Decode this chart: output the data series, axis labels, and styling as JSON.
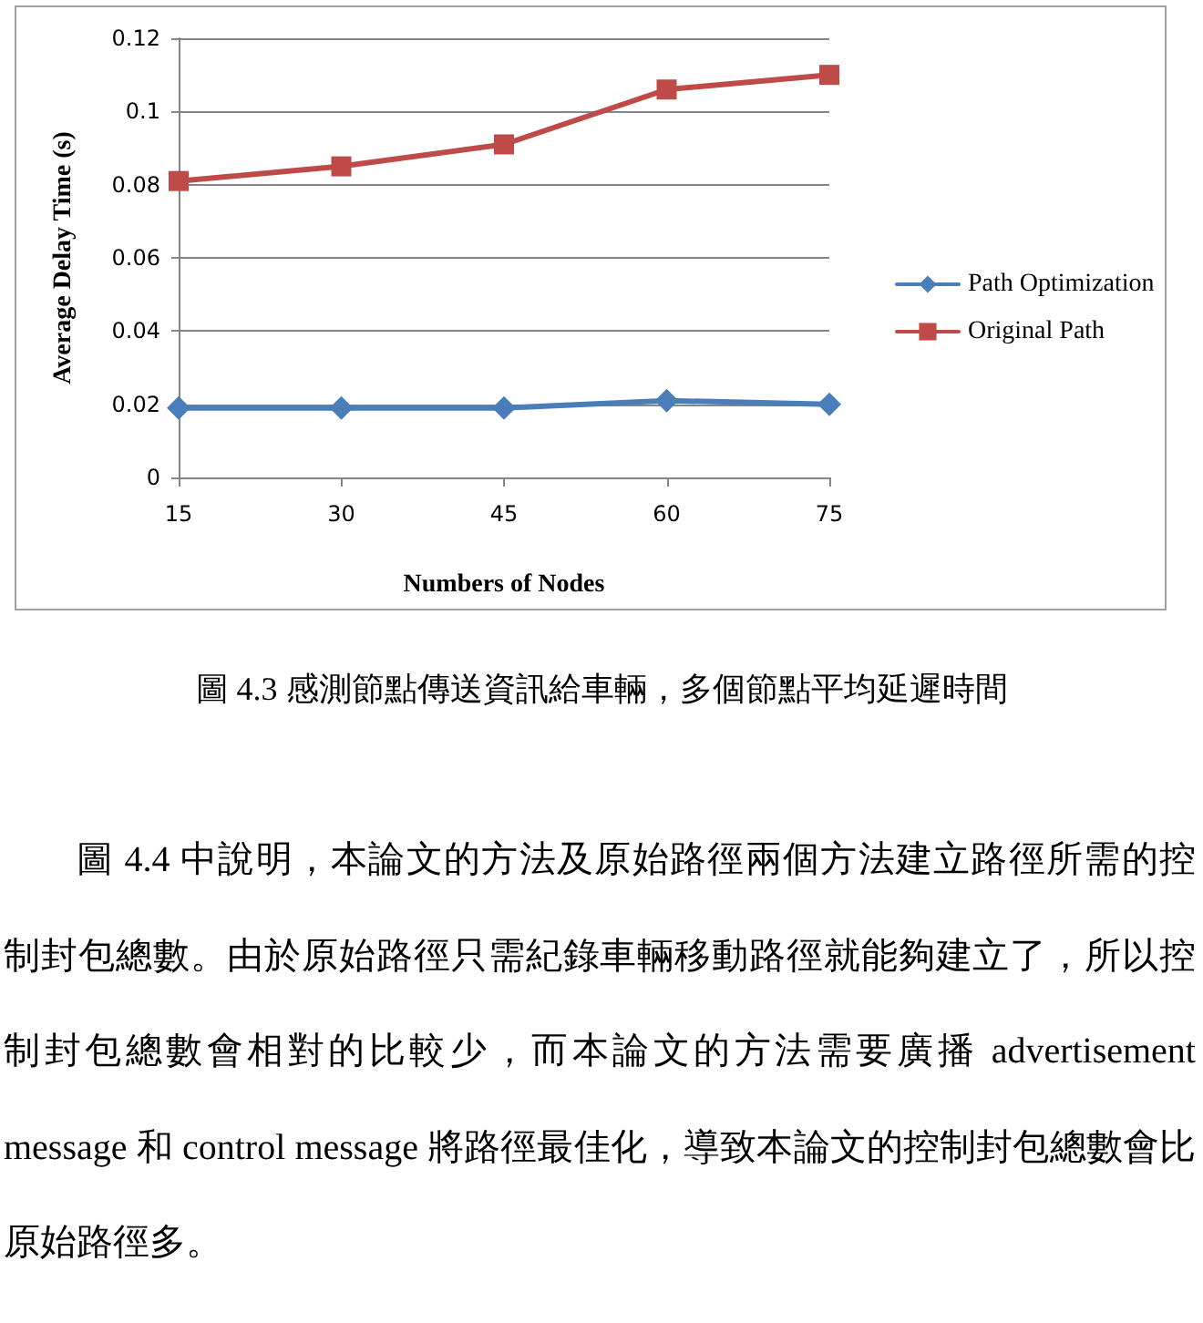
{
  "chart_data": {
    "type": "line",
    "title": "圖 4.3 感測節點傳送資訊給車輛，多個節點平均延遲時間",
    "xlabel": "Numbers of Nodes",
    "ylabel": "Average Delay Time (s)",
    "categories": [
      "15",
      "30",
      "45",
      "60",
      "75"
    ],
    "series": [
      {
        "name": "Path Optimization",
        "color": "#4a7ebb",
        "marker": "diamond",
        "values": [
          0.019,
          0.019,
          0.019,
          0.021,
          0.02
        ]
      },
      {
        "name": "Original Path",
        "color": "#be4b48",
        "marker": "square",
        "values": [
          0.081,
          0.085,
          0.091,
          0.106,
          0.11
        ]
      }
    ],
    "ylim": [
      0,
      0.12
    ],
    "yticks": [
      0,
      0.02,
      0.04,
      0.06,
      0.08,
      0.1,
      0.12
    ],
    "grid": "y",
    "legend": "right",
    "annotations": [
      "圖 4.4 中說明，本論文的方法及原始路徑兩個方法建立路徑所需的控制封包總數。由於原始路徑只需紀錄車輛移動路徑就能夠建立了，所以控制封包總數會相對的比較少，而本論文的方法需要廣播 advertisement message 和 control message 將路徑最佳化，導致本論文的控制封包總數會比原始路徑多。"
    ]
  }
}
